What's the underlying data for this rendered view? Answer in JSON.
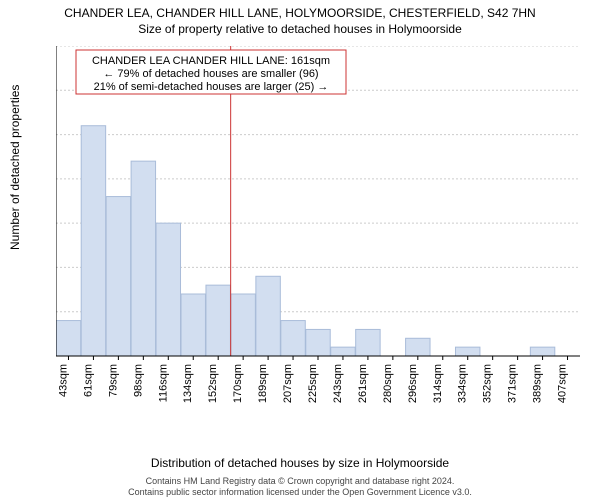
{
  "title": "CHANDER LEA, CHANDER HILL LANE, HOLYMOORSIDE, CHESTERFIELD, S42 7HN",
  "subtitle": "Size of property relative to detached houses in Holymoorside",
  "ylabel": "Number of detached properties",
  "xlabel": "Distribution of detached houses by size in Holymoorside",
  "footer_line1": "Contains HM Land Registry data © Crown copyright and database right 2024.",
  "footer_line2": "Contains public sector information licensed under the Open Government Licence v3.0.",
  "chart": {
    "type": "histogram",
    "categories": [
      "43sqm",
      "61sqm",
      "79sqm",
      "98sqm",
      "116sqm",
      "134sqm",
      "152sqm",
      "170sqm",
      "189sqm",
      "207sqm",
      "225sqm",
      "243sqm",
      "261sqm",
      "280sqm",
      "296sqm",
      "314sqm",
      "334sqm",
      "352sqm",
      "371sqm",
      "389sqm",
      "407sqm"
    ],
    "values": [
      4,
      26,
      18,
      22,
      15,
      7,
      8,
      7,
      9,
      4,
      3,
      1,
      3,
      0,
      2,
      0,
      1,
      0,
      0,
      1,
      0
    ],
    "bar_fill": "#d2def0",
    "bar_stroke": "#a9bcd9",
    "bar_width": 0.98,
    "ylim": [
      0,
      35
    ],
    "ytick_step": 5,
    "grid_color": "#cccccc",
    "background_color": "#ffffff",
    "reference_line": {
      "x_category_index": 7,
      "color": "#cc3333"
    },
    "annotation": {
      "lines": [
        "CHANDER LEA CHANDER HILL LANE: 161sqm",
        "← 79% of detached houses are smaller (96)",
        "21% of semi-detached houses are larger (25) →"
      ],
      "box_stroke": "#cc3333",
      "fontsize": 11
    }
  }
}
